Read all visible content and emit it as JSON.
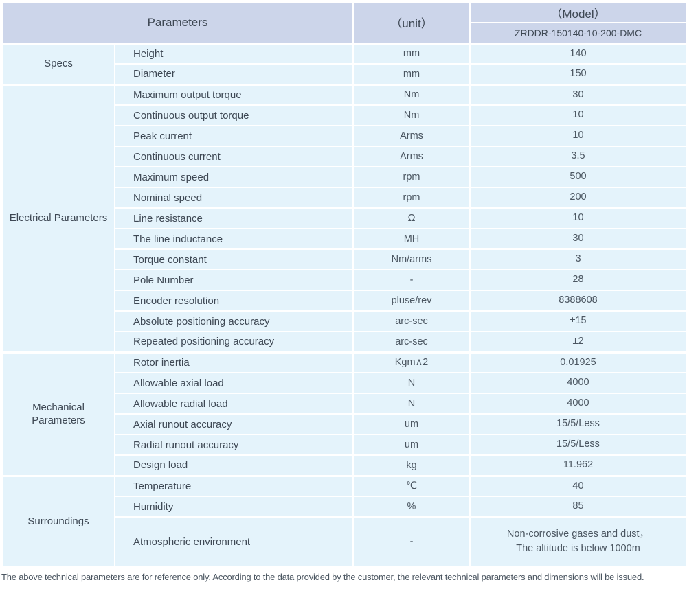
{
  "colors": {
    "header_bg": "#ccd5ea",
    "row_bg": "#e4f3fb",
    "border": "#ffffff",
    "text_dark": "#3e4854",
    "text_mid": "#4b5661"
  },
  "table": {
    "header": {
      "parameters": "Parameters",
      "unit": "（unit）",
      "model": "（Model）",
      "model_value": "ZRDDR-150140-10-200-DMC"
    },
    "groups": [
      {
        "label": "Specs",
        "rows": [
          {
            "name": "Height",
            "unit": "mm",
            "value": "140"
          },
          {
            "name": "Diameter",
            "unit": "mm",
            "value": "150"
          }
        ]
      },
      {
        "label": "Electrical Parameters",
        "rows": [
          {
            "name": "Maximum output torque",
            "unit": "Nm",
            "value": "30"
          },
          {
            "name": "Continuous output torque",
            "unit": "Nm",
            "value": "10"
          },
          {
            "name": "Peak current",
            "unit": "Arms",
            "value": "10"
          },
          {
            "name": "Continuous current",
            "unit": "Arms",
            "value": "3.5"
          },
          {
            "name": "Maximum speed",
            "unit": "rpm",
            "value": "500"
          },
          {
            "name": "Nominal speed",
            "unit": "rpm",
            "value": "200"
          },
          {
            "name": "Line resistance",
            "unit": "Ω",
            "value": "10"
          },
          {
            "name": "The line inductance",
            "unit": "MH",
            "value": "30"
          },
          {
            "name": "Torque constant",
            "unit": "Nm/arms",
            "value": "3"
          },
          {
            "name": "Pole Number",
            "unit": "-",
            "value": "28"
          },
          {
            "name": "Encoder resolution",
            "unit": "pluse/rev",
            "value": "8388608"
          },
          {
            "name": "Absolute positioning accuracy",
            "unit": "arc-sec",
            "value": "±15"
          },
          {
            "name": "Repeated positioning accuracy",
            "unit": "arc-sec",
            "value": "±2"
          }
        ]
      },
      {
        "label": "Mechanical Parameters",
        "rows": [
          {
            "name": "Rotor inertia",
            "unit": "Kgm∧2",
            "value": "0.01925"
          },
          {
            "name": "Allowable axial load",
            "unit": "N",
            "value": "4000"
          },
          {
            "name": "Allowable radial load",
            "unit": "N",
            "value": "4000"
          },
          {
            "name": "Axial runout accuracy",
            "unit": "um",
            "value": "15/5/Less"
          },
          {
            "name": "Radial runout accuracy",
            "unit": "um",
            "value": "15/5/Less"
          },
          {
            "name": "Design load",
            "unit": "kg",
            "value": "11.962"
          }
        ]
      },
      {
        "label": "Surroundings",
        "rows": [
          {
            "name": "Temperature",
            "unit": "℃",
            "value": "40"
          },
          {
            "name": "Humidity",
            "unit": "%",
            "value": "85"
          },
          {
            "name": "Atmospheric environment",
            "unit": "-",
            "value": "Non-corrosive gases and dust，\nThe altitude is below 1000m"
          }
        ]
      }
    ],
    "footnote": "The above technical parameters are for reference only. According to the data provided by the customer, the relevant technical parameters and dimensions will be issued."
  }
}
